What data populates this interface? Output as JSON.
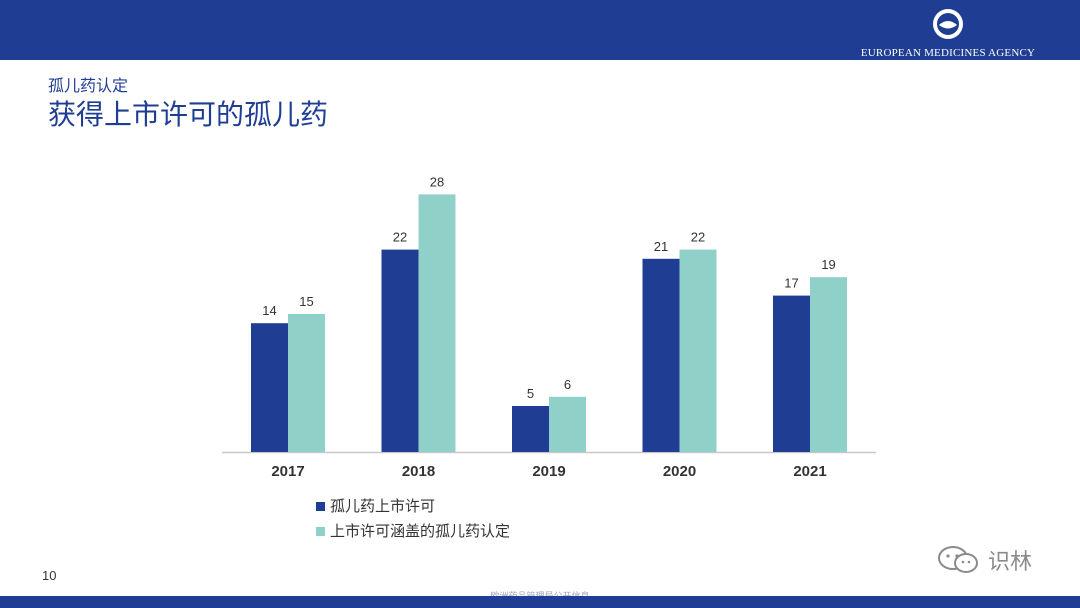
{
  "header": {
    "logo_text": "EUROPEAN MEDICINES AGENCY"
  },
  "slide": {
    "subtitle": "孤儿药认定",
    "title": "获得上市许可的孤儿药",
    "page_number": "10",
    "footer": "欧洲药品管理局公开信息"
  },
  "watermark": {
    "text": "识林"
  },
  "colors": {
    "brand": "#1f3e93",
    "series1": "#1f3e93",
    "series2": "#8fd1c9"
  },
  "chart_data": {
    "type": "bar",
    "title": "",
    "xlabel": "",
    "ylabel": "",
    "ylim": [
      0,
      30
    ],
    "grid": false,
    "categories": [
      "2017",
      "2018",
      "2019",
      "2020",
      "2021"
    ],
    "series": [
      {
        "name": "孤儿药上市许可",
        "values": [
          14,
          22,
          5,
          21,
          17
        ]
      },
      {
        "name": "上市许可涵盖的孤儿药认定",
        "values": [
          15,
          28,
          6,
          22,
          19
        ]
      }
    ],
    "legend_position": "bottom-left"
  }
}
